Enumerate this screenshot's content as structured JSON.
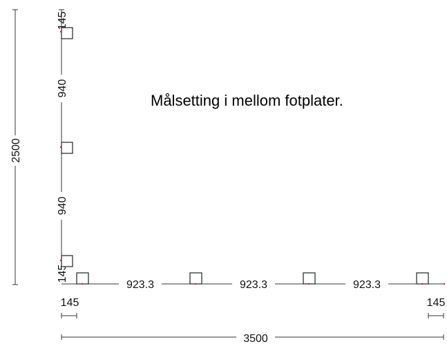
{
  "note": "Målsetting i mellom fotplater.",
  "dimensions": {
    "overall_height": "2500",
    "overall_width": "3500",
    "vertical_segments": [
      "145",
      "940",
      "940",
      "145"
    ],
    "horizontal_segments": [
      "923.3",
      "923.3",
      "923.3"
    ],
    "edge_left": "145",
    "edge_right": "145"
  },
  "colors": {
    "lines": "#333333",
    "points": "#d22222"
  }
}
